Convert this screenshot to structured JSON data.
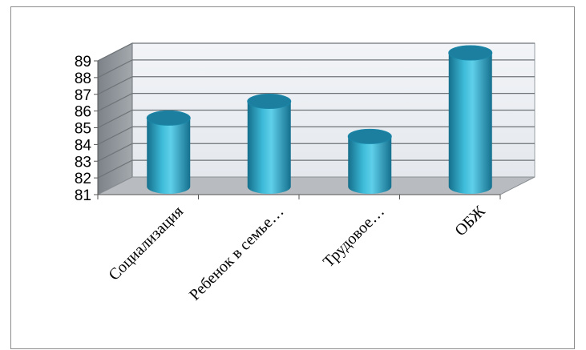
{
  "chart_data": {
    "type": "bar",
    "style": "3d-cylinder",
    "categories": [
      "Социализация",
      "Ребенок в семье…",
      "Трудовое…",
      "ОБЖ"
    ],
    "values": [
      85.1,
      86.1,
      84.0,
      89.0
    ],
    "ylim": [
      81,
      89
    ],
    "yticks": [
      "81",
      "82",
      "83",
      "84",
      "85",
      "86",
      "87",
      "88",
      "89"
    ],
    "grid": true,
    "legend": "none",
    "colors": {
      "bar": "#2fa8c7",
      "bar_top": "#1d7fa0",
      "back_wall": "#eef1f5",
      "side_wall": "#8e9499",
      "floor": "#b8bcc0",
      "grid": "#6e7478"
    }
  }
}
